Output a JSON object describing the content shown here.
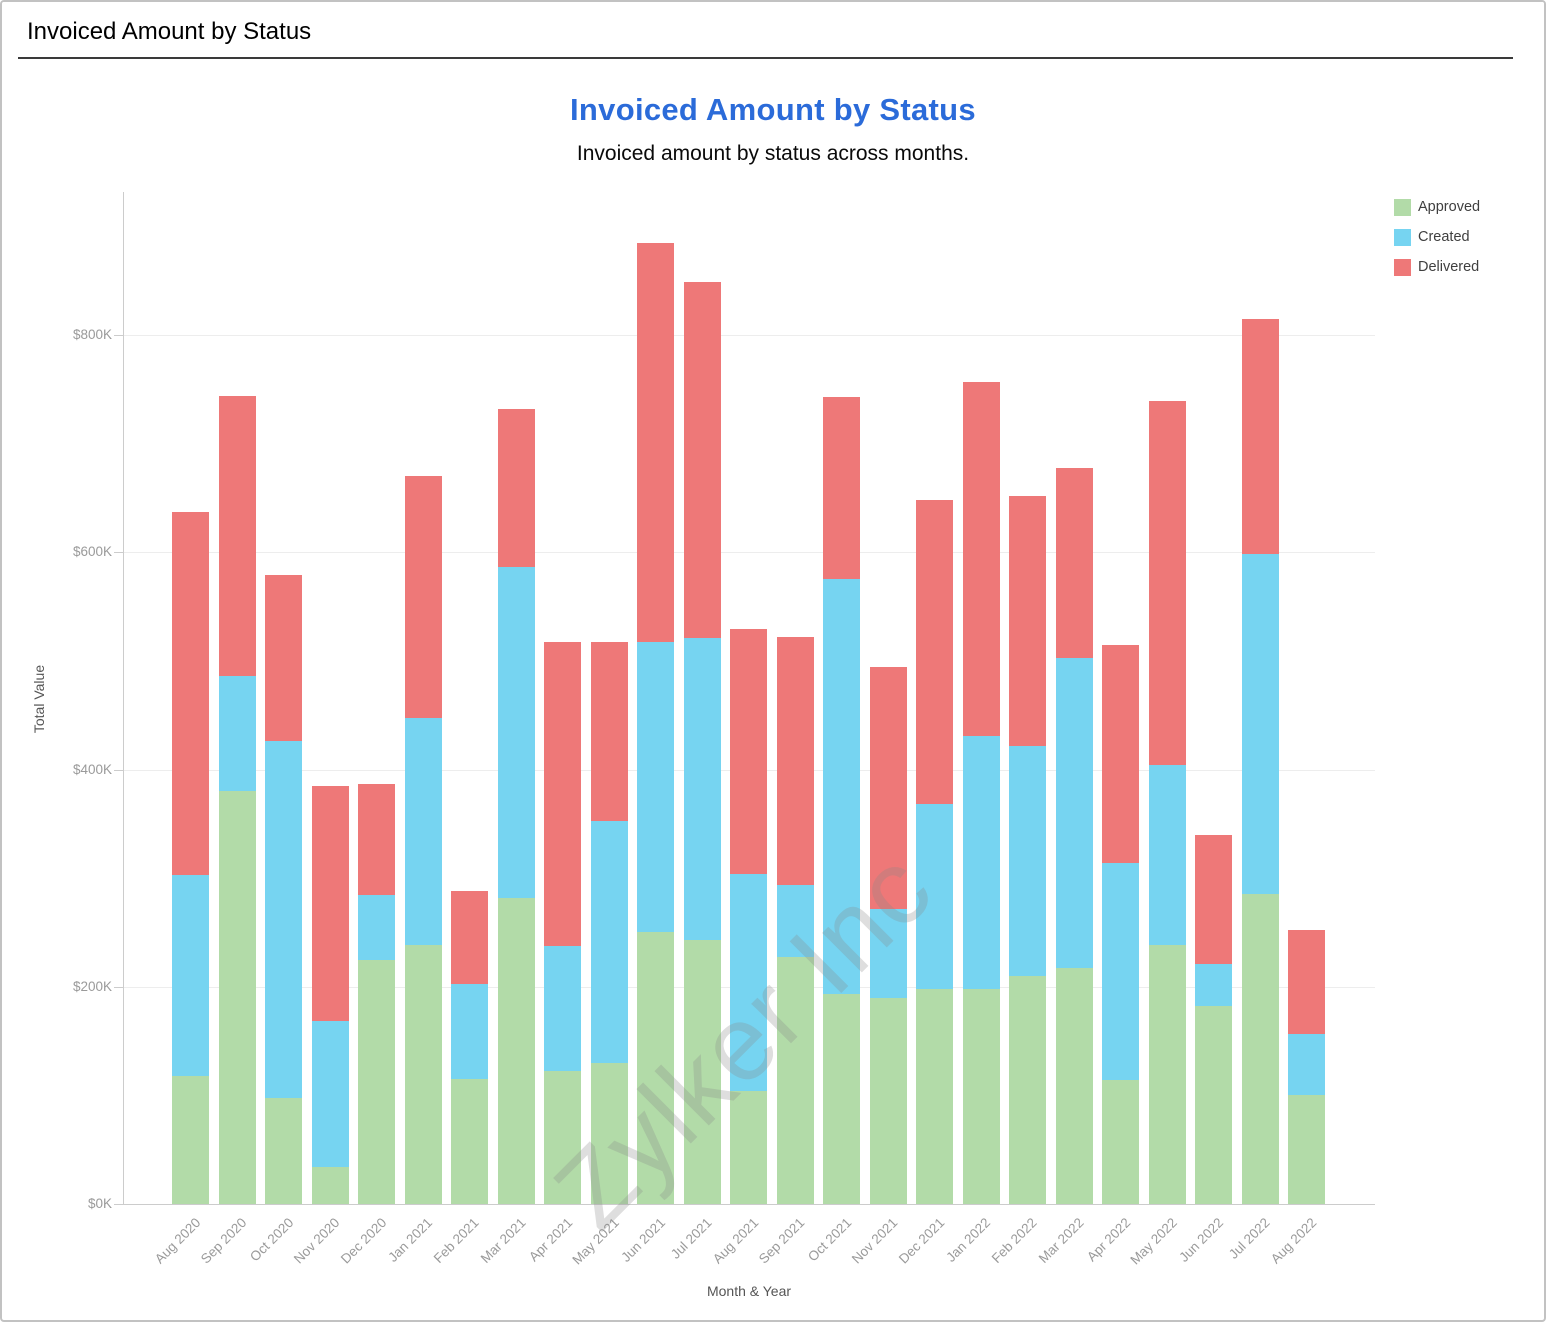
{
  "page": {
    "header_title": "Invoiced Amount by Status"
  },
  "chart": {
    "title": "Invoiced Amount by Status",
    "subtitle": "Invoiced amount by status across months."
  },
  "chart_data": {
    "type": "bar",
    "stacked": true,
    "title": "Invoiced Amount by Status",
    "subtitle": "Invoiced amount by status across months.",
    "xlabel": "Month & Year",
    "ylabel": "Total Value",
    "unit": "USD thousands (K)",
    "grid": true,
    "legend_position": "top-right",
    "watermark": "Zylker Inc",
    "ylim": [
      0,
      930
    ],
    "y_ticks": [
      {
        "label": "$0K",
        "value": 0
      },
      {
        "label": "$200K",
        "value": 200
      },
      {
        "label": "$400K",
        "value": 400
      },
      {
        "label": "$600K",
        "value": 600
      },
      {
        "label": "$800K",
        "value": 800
      }
    ],
    "categories": [
      "Aug 2020",
      "Sep 2020",
      "Oct 2020",
      "Nov 2020",
      "Dec 2020",
      "Jan 2021",
      "Feb 2021",
      "Mar 2021",
      "Apr 2021",
      "May 2021",
      "Jun 2021",
      "Jul 2021",
      "Aug 2021",
      "Sep 2021",
      "Oct 2021",
      "Nov 2021",
      "Dec 2021",
      "Jan 2022",
      "Feb 2022",
      "Mar 2022",
      "Apr 2022",
      "May 2022",
      "Jun 2022",
      "Jul 2022",
      "Aug 2022"
    ],
    "series": [
      {
        "name": "Approved",
        "color": "#b2dba8",
        "values": [
          118,
          380,
          98,
          34,
          225,
          238,
          115,
          282,
          122,
          130,
          250,
          243,
          104,
          227,
          193,
          190,
          198,
          198,
          210,
          217,
          114,
          238,
          182,
          285,
          100
        ]
      },
      {
        "name": "Created",
        "color": "#76d4f1",
        "values": [
          185,
          106,
          329,
          134,
          60,
          209,
          87,
          305,
          115,
          223,
          267,
          278,
          200,
          66,
          382,
          82,
          170,
          233,
          212,
          285,
          200,
          166,
          39,
          313,
          56
        ]
      },
      {
        "name": "Delivered",
        "color": "#ee7878",
        "values": [
          334,
          258,
          153,
          216,
          102,
          223,
          86,
          145,
          280,
          165,
          367,
          328,
          226,
          228,
          168,
          223,
          280,
          326,
          230,
          175,
          201,
          335,
          119,
          216,
          96
        ]
      }
    ]
  },
  "colors": {
    "title_accent": "#2b6bd9",
    "approved": "#b2dba8",
    "created": "#76d4f1",
    "delivered": "#ee7878",
    "grid": "#ededed",
    "axis": "#cccccc",
    "tick_text": "#9a9a9a",
    "axis_title_text": "#555555",
    "watermark_text": "#d9d9d9"
  }
}
